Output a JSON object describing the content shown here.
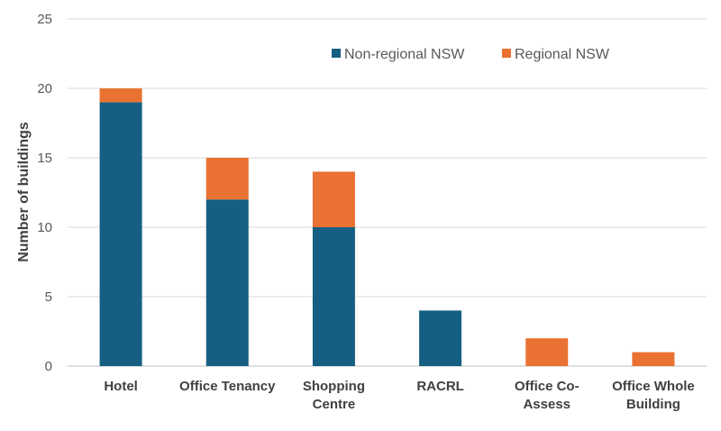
{
  "chart_data": {
    "type": "bar",
    "stacked": true,
    "title": "",
    "xlabel": "",
    "ylabel": "Number of buildings",
    "ylim": [
      0,
      25
    ],
    "yticks": [
      0,
      5,
      10,
      15,
      20,
      25
    ],
    "grid": true,
    "legend_position": "top-right",
    "categories": [
      [
        "Hotel"
      ],
      [
        "Office Tenancy"
      ],
      [
        "Shopping",
        "Centre"
      ],
      [
        "RACRL"
      ],
      [
        "Office Co-",
        "Assess"
      ],
      [
        "Office Whole",
        "Building"
      ]
    ],
    "series": [
      {
        "name": "Non-regional NSW",
        "color": "#156082",
        "values": [
          19,
          12,
          10,
          4,
          0,
          0
        ]
      },
      {
        "name": "Regional NSW",
        "color": "#E97132",
        "values": [
          1,
          3,
          4,
          0,
          2,
          1
        ]
      }
    ]
  }
}
